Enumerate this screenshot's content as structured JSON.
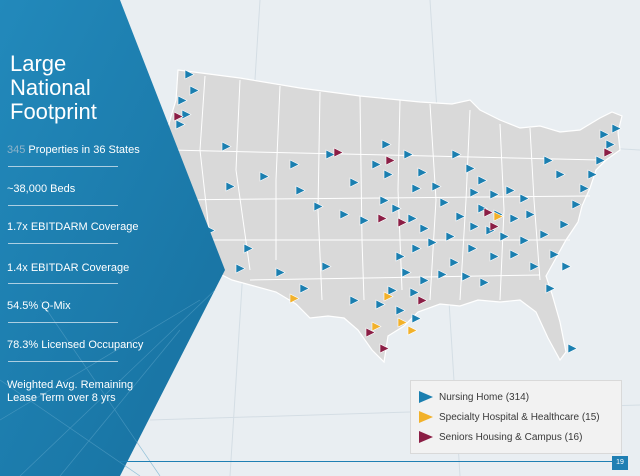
{
  "title": {
    "line1": "Large",
    "line2": "National",
    "line3": "Footprint"
  },
  "stats": [
    {
      "highlight": "345",
      "text": " Properties in 36 States"
    },
    {
      "highlight": "",
      "text": "~38,000 Beds"
    },
    {
      "highlight": "",
      "text": "1.7x EBITDARM Coverage"
    },
    {
      "highlight": "",
      "text": "1.4x EBITDAR Coverage"
    },
    {
      "highlight": "",
      "text": "54.5% Q-Mix"
    },
    {
      "highlight": "",
      "text": "78.3% Licensed Occupancy"
    },
    {
      "highlight": "",
      "text": "Weighted Avg. Remaining Lease Term over 8 yrs"
    }
  ],
  "legend": [
    {
      "label": "Nursing Home (314)",
      "color": "#1b7fb0",
      "icon": "blue-triangle-marker"
    },
    {
      "label": "Specialty Hospital & Healthcare (15)",
      "color": "#f2b12a",
      "icon": "yellow-triangle-marker"
    },
    {
      "label": "Seniors Housing & Campus (16)",
      "color": "#8b1e45",
      "icon": "maroon-triangle-marker"
    }
  ],
  "page_number": "19",
  "colors": {
    "panel": "#1b7fb0",
    "map_land": "#d9d9d9",
    "map_border": "#ffffff",
    "accent": "#1f7fb3"
  }
}
